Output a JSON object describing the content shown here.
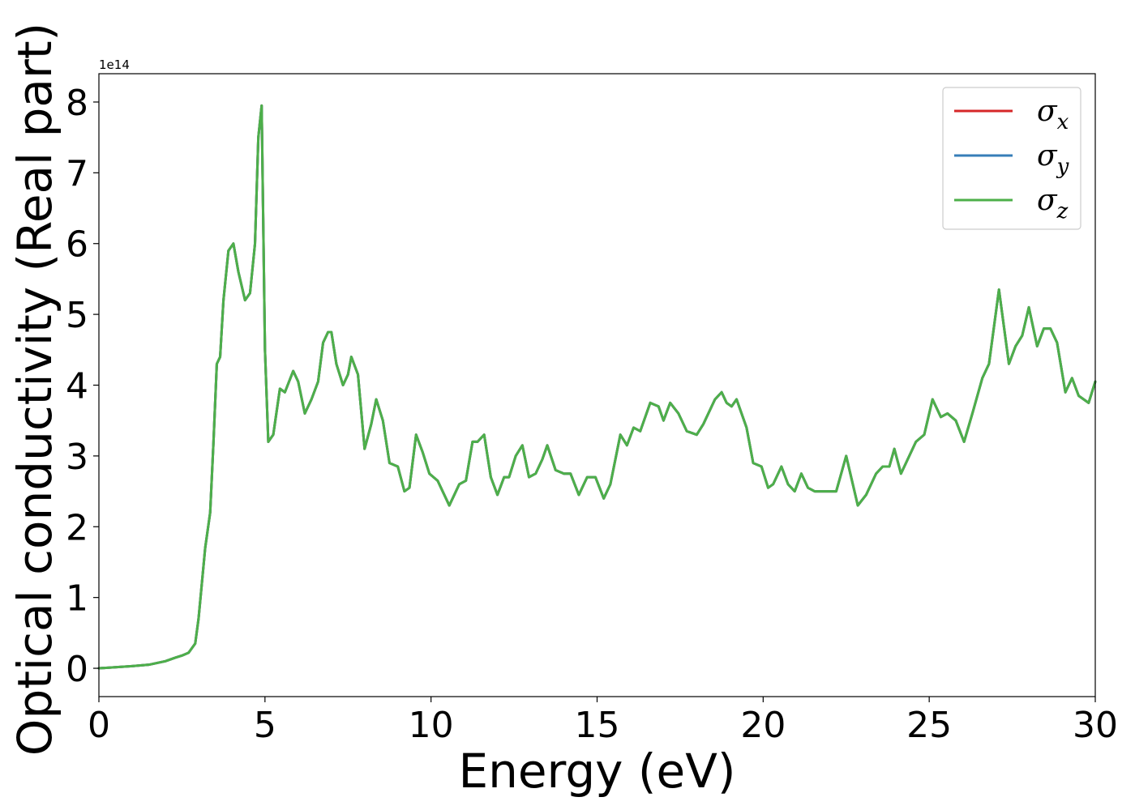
{
  "chart_data": {
    "type": "line",
    "xlabel": "Energy (eV)",
    "ylabel": "Optical conductivity (Real part)",
    "y_offset_text": "1e14",
    "y_scale": 100000000000000.0,
    "xlim": [
      0,
      30
    ],
    "ylim": [
      -0.4,
      8.4
    ],
    "xticks": [
      0,
      5,
      10,
      15,
      20,
      25,
      30
    ],
    "xtick_labels": [
      "0",
      "5",
      "10",
      "15",
      "20",
      "25",
      "30"
    ],
    "yticks": [
      0,
      1,
      2,
      3,
      4,
      5,
      6,
      7,
      8
    ],
    "ytick_labels": [
      "0",
      "1",
      "2",
      "3",
      "4",
      "5",
      "6",
      "7",
      "8"
    ],
    "grid": false,
    "legend_position": "top-right",
    "legend": [
      {
        "label": "σ",
        "sub": "x",
        "color": "#d62728"
      },
      {
        "label": "σ",
        "sub": "y",
        "color": "#377eb8"
      },
      {
        "label": "σ",
        "sub": "z",
        "color": "#4daf4a"
      }
    ],
    "series": [
      {
        "name": "σx",
        "color": "#d62728",
        "x": [
          0,
          1.0,
          1.5,
          2.0,
          2.3,
          2.5,
          2.7,
          2.9,
          3.0,
          3.2,
          3.35,
          3.45,
          3.55,
          3.65,
          3.75,
          3.9,
          4.05,
          4.2,
          4.4,
          4.55,
          4.7,
          4.8,
          4.9,
          5.0,
          5.1,
          5.25,
          5.45,
          5.6,
          5.85,
          6.0,
          6.2,
          6.4,
          6.6,
          6.75,
          6.9,
          7.0,
          7.15,
          7.35,
          7.5,
          7.6,
          7.8,
          8.0,
          8.2,
          8.35,
          8.55,
          8.75,
          9.0,
          9.2,
          9.35,
          9.55,
          9.75,
          9.95,
          10.2,
          10.55,
          10.85,
          11.05,
          11.25,
          11.4,
          11.6,
          11.8,
          12.0,
          12.2,
          12.35,
          12.55,
          12.75,
          12.95,
          13.15,
          13.35,
          13.5,
          13.75,
          14.0,
          14.2,
          14.45,
          14.7,
          14.95,
          15.2,
          15.4,
          15.7,
          15.9,
          16.1,
          16.3,
          16.6,
          16.85,
          17.0,
          17.2,
          17.45,
          17.7,
          18.0,
          18.2,
          18.55,
          18.75,
          18.9,
          19.05,
          19.2,
          19.5,
          19.7,
          19.95,
          20.15,
          20.3,
          20.55,
          20.75,
          20.95,
          21.15,
          21.35,
          21.55,
          21.7,
          22.0,
          22.2,
          22.5,
          22.85,
          23.1,
          23.4,
          23.6,
          23.8,
          23.95,
          24.15,
          24.35,
          24.6,
          24.85,
          25.1,
          25.35,
          25.55,
          25.8,
          26.05,
          26.3,
          26.6,
          26.8,
          27.1,
          27.4,
          27.6,
          27.8,
          28.0,
          28.25,
          28.45,
          28.65,
          28.85,
          29.1,
          29.3,
          29.5,
          29.8,
          30.0
        ],
        "y": [
          0,
          0.03,
          0.05,
          0.1,
          0.15,
          0.18,
          0.22,
          0.35,
          0.7,
          1.7,
          2.2,
          3.2,
          4.3,
          4.4,
          5.2,
          5.9,
          6.0,
          5.6,
          5.2,
          5.3,
          6.0,
          7.5,
          7.95,
          4.5,
          3.2,
          3.3,
          3.95,
          3.9,
          4.2,
          4.05,
          3.6,
          3.8,
          4.05,
          4.6,
          4.75,
          4.75,
          4.3,
          4.0,
          4.15,
          4.4,
          4.15,
          3.1,
          3.45,
          3.8,
          3.5,
          2.9,
          2.85,
          2.5,
          2.55,
          3.3,
          3.05,
          2.75,
          2.65,
          2.3,
          2.6,
          2.65,
          3.2,
          3.2,
          3.3,
          2.7,
          2.45,
          2.7,
          2.7,
          3.0,
          3.15,
          2.7,
          2.75,
          2.95,
          3.15,
          2.8,
          2.75,
          2.75,
          2.45,
          2.7,
          2.7,
          2.4,
          2.6,
          3.3,
          3.15,
          3.4,
          3.35,
          3.75,
          3.7,
          3.5,
          3.75,
          3.6,
          3.35,
          3.3,
          3.45,
          3.8,
          3.9,
          3.75,
          3.7,
          3.8,
          3.4,
          2.9,
          2.85,
          2.55,
          2.6,
          2.85,
          2.6,
          2.5,
          2.75,
          2.55,
          2.5,
          2.5,
          2.5,
          2.5,
          3.0,
          2.3,
          2.45,
          2.75,
          2.85,
          2.85,
          3.1,
          2.75,
          2.95,
          3.2,
          3.3,
          3.8,
          3.55,
          3.6,
          3.5,
          3.2,
          3.6,
          4.1,
          4.3,
          5.35,
          4.3,
          4.55,
          4.7,
          5.1,
          4.55,
          4.8,
          4.8,
          4.6,
          3.9,
          4.1,
          3.85,
          3.75,
          4.05
        ]
      },
      {
        "name": "σy",
        "color": "#377eb8",
        "x": [
          0,
          1.0,
          1.5,
          2.0,
          2.3,
          2.5,
          2.7,
          2.9,
          3.0,
          3.2,
          3.35,
          3.45,
          3.55,
          3.65,
          3.75,
          3.9,
          4.05,
          4.2,
          4.4,
          4.55,
          4.7,
          4.8,
          4.9,
          5.0,
          5.1,
          5.25,
          5.45,
          5.6,
          5.85,
          6.0,
          6.2,
          6.4,
          6.6,
          6.75,
          6.9,
          7.0,
          7.15,
          7.35,
          7.5,
          7.6,
          7.8,
          8.0,
          8.2,
          8.35,
          8.55,
          8.75,
          9.0,
          9.2,
          9.35,
          9.55,
          9.75,
          9.95,
          10.2,
          10.55,
          10.85,
          11.05,
          11.25,
          11.4,
          11.6,
          11.8,
          12.0,
          12.2,
          12.35,
          12.55,
          12.75,
          12.95,
          13.15,
          13.35,
          13.5,
          13.75,
          14.0,
          14.2,
          14.45,
          14.7,
          14.95,
          15.2,
          15.4,
          15.7,
          15.9,
          16.1,
          16.3,
          16.6,
          16.85,
          17.0,
          17.2,
          17.45,
          17.7,
          18.0,
          18.2,
          18.55,
          18.75,
          18.9,
          19.05,
          19.2,
          19.5,
          19.7,
          19.95,
          20.15,
          20.3,
          20.55,
          20.75,
          20.95,
          21.15,
          21.35,
          21.55,
          21.7,
          22.0,
          22.2,
          22.5,
          22.85,
          23.1,
          23.4,
          23.6,
          23.8,
          23.95,
          24.15,
          24.35,
          24.6,
          24.85,
          25.1,
          25.35,
          25.55,
          25.8,
          26.05,
          26.3,
          26.6,
          26.8,
          27.1,
          27.4,
          27.6,
          27.8,
          28.0,
          28.25,
          28.45,
          28.65,
          28.85,
          29.1,
          29.3,
          29.5,
          29.8,
          30.0
        ],
        "y": [
          0,
          0.03,
          0.05,
          0.1,
          0.15,
          0.18,
          0.22,
          0.35,
          0.7,
          1.7,
          2.2,
          3.2,
          4.3,
          4.4,
          5.2,
          5.9,
          6.0,
          5.6,
          5.2,
          5.3,
          6.0,
          7.5,
          7.95,
          4.5,
          3.2,
          3.3,
          3.95,
          3.9,
          4.2,
          4.05,
          3.6,
          3.8,
          4.05,
          4.6,
          4.75,
          4.75,
          4.3,
          4.0,
          4.15,
          4.4,
          4.15,
          3.1,
          3.45,
          3.8,
          3.5,
          2.9,
          2.85,
          2.5,
          2.55,
          3.3,
          3.05,
          2.75,
          2.65,
          2.3,
          2.6,
          2.65,
          3.2,
          3.2,
          3.3,
          2.7,
          2.45,
          2.7,
          2.7,
          3.0,
          3.15,
          2.7,
          2.75,
          2.95,
          3.15,
          2.8,
          2.75,
          2.75,
          2.45,
          2.7,
          2.7,
          2.4,
          2.6,
          3.3,
          3.15,
          3.4,
          3.35,
          3.75,
          3.7,
          3.5,
          3.75,
          3.6,
          3.35,
          3.3,
          3.45,
          3.8,
          3.9,
          3.75,
          3.7,
          3.8,
          3.4,
          2.9,
          2.85,
          2.55,
          2.6,
          2.85,
          2.6,
          2.5,
          2.75,
          2.55,
          2.5,
          2.5,
          2.5,
          2.5,
          3.0,
          2.3,
          2.45,
          2.75,
          2.85,
          2.85,
          3.1,
          2.75,
          2.95,
          3.2,
          3.3,
          3.8,
          3.55,
          3.6,
          3.5,
          3.2,
          3.6,
          4.1,
          4.3,
          5.35,
          4.3,
          4.55,
          4.7,
          5.1,
          4.55,
          4.8,
          4.8,
          4.6,
          3.9,
          4.1,
          3.85,
          3.75,
          4.05
        ]
      },
      {
        "name": "σz",
        "color": "#4daf4a",
        "x": [
          0,
          1.0,
          1.5,
          2.0,
          2.3,
          2.5,
          2.7,
          2.9,
          3.0,
          3.2,
          3.35,
          3.45,
          3.55,
          3.65,
          3.75,
          3.9,
          4.05,
          4.2,
          4.4,
          4.55,
          4.7,
          4.8,
          4.9,
          5.0,
          5.1,
          5.25,
          5.45,
          5.6,
          5.85,
          6.0,
          6.2,
          6.4,
          6.6,
          6.75,
          6.9,
          7.0,
          7.15,
          7.35,
          7.5,
          7.6,
          7.8,
          8.0,
          8.2,
          8.35,
          8.55,
          8.75,
          9.0,
          9.2,
          9.35,
          9.55,
          9.75,
          9.95,
          10.2,
          10.55,
          10.85,
          11.05,
          11.25,
          11.4,
          11.6,
          11.8,
          12.0,
          12.2,
          12.35,
          12.55,
          12.75,
          12.95,
          13.15,
          13.35,
          13.5,
          13.75,
          14.0,
          14.2,
          14.45,
          14.7,
          14.95,
          15.2,
          15.4,
          15.7,
          15.9,
          16.1,
          16.3,
          16.6,
          16.85,
          17.0,
          17.2,
          17.45,
          17.7,
          18.0,
          18.2,
          18.55,
          18.75,
          18.9,
          19.05,
          19.2,
          19.5,
          19.7,
          19.95,
          20.15,
          20.3,
          20.55,
          20.75,
          20.95,
          21.15,
          21.35,
          21.55,
          21.7,
          22.0,
          22.2,
          22.5,
          22.85,
          23.1,
          23.4,
          23.6,
          23.8,
          23.95,
          24.15,
          24.35,
          24.6,
          24.85,
          25.1,
          25.35,
          25.55,
          25.8,
          26.05,
          26.3,
          26.6,
          26.8,
          27.1,
          27.4,
          27.6,
          27.8,
          28.0,
          28.25,
          28.45,
          28.65,
          28.85,
          29.1,
          29.3,
          29.5,
          29.8,
          30.0
        ],
        "y": [
          0,
          0.03,
          0.05,
          0.1,
          0.15,
          0.18,
          0.22,
          0.35,
          0.7,
          1.7,
          2.2,
          3.2,
          4.3,
          4.4,
          5.2,
          5.9,
          6.0,
          5.6,
          5.2,
          5.3,
          6.0,
          7.5,
          7.95,
          4.5,
          3.2,
          3.3,
          3.95,
          3.9,
          4.2,
          4.05,
          3.6,
          3.8,
          4.05,
          4.6,
          4.75,
          4.75,
          4.3,
          4.0,
          4.15,
          4.4,
          4.15,
          3.1,
          3.45,
          3.8,
          3.5,
          2.9,
          2.85,
          2.5,
          2.55,
          3.3,
          3.05,
          2.75,
          2.65,
          2.3,
          2.6,
          2.65,
          3.2,
          3.2,
          3.3,
          2.7,
          2.45,
          2.7,
          2.7,
          3.0,
          3.15,
          2.7,
          2.75,
          2.95,
          3.15,
          2.8,
          2.75,
          2.75,
          2.45,
          2.7,
          2.7,
          2.4,
          2.6,
          3.3,
          3.15,
          3.4,
          3.35,
          3.75,
          3.7,
          3.5,
          3.75,
          3.6,
          3.35,
          3.3,
          3.45,
          3.8,
          3.9,
          3.75,
          3.7,
          3.8,
          3.4,
          2.9,
          2.85,
          2.55,
          2.6,
          2.85,
          2.6,
          2.5,
          2.75,
          2.55,
          2.5,
          2.5,
          2.5,
          2.5,
          3.0,
          2.3,
          2.45,
          2.75,
          2.85,
          2.85,
          3.1,
          2.75,
          2.95,
          3.2,
          3.3,
          3.8,
          3.55,
          3.6,
          3.5,
          3.2,
          3.6,
          4.1,
          4.3,
          5.35,
          4.3,
          4.55,
          4.7,
          5.1,
          4.55,
          4.8,
          4.8,
          4.6,
          3.9,
          4.1,
          3.85,
          3.75,
          4.05
        ]
      }
    ]
  }
}
